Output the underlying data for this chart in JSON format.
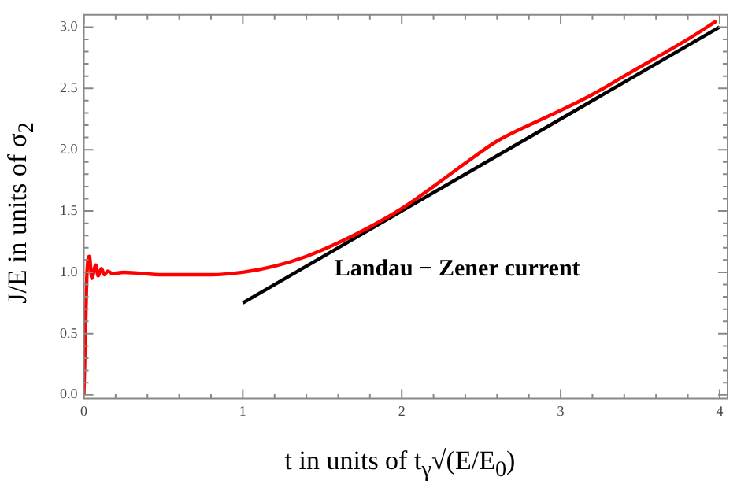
{
  "chart_data": {
    "type": "line",
    "xlabel": "t in units of t$_{γ}$√(E/E$_{0}$)",
    "ylabel": "J/E in units of σ$_{2}$",
    "annotations": [
      "Landau − Zener current"
    ],
    "xlim": [
      0,
      4.05
    ],
    "ylim": [
      -0.03,
      3.1
    ],
    "xticks": [
      0,
      {
        "value": 0.2,
        "label": null
      },
      {
        "value": 0.4,
        "label": null
      },
      {
        "value": 0.6,
        "label": null
      },
      {
        "value": 0.8,
        "label": null
      },
      1,
      {
        "value": 1.2,
        "label": null
      },
      {
        "value": 1.4,
        "label": null
      },
      {
        "value": 1.6,
        "label": null
      },
      {
        "value": 1.8,
        "label": null
      },
      2,
      {
        "value": 2.2,
        "label": null
      },
      {
        "value": 2.4,
        "label": null
      },
      {
        "value": 2.6,
        "label": null
      },
      {
        "value": 2.8,
        "label": null
      },
      3,
      {
        "value": 3.2,
        "label": null
      },
      {
        "value": 3.4,
        "label": null
      },
      {
        "value": 3.6,
        "label": null
      },
      {
        "value": 3.8,
        "label": null
      },
      4
    ],
    "yticks": [
      {
        "value": 0,
        "label": "0.0"
      },
      {
        "value": 0.1,
        "label": null
      },
      {
        "value": 0.2,
        "label": null
      },
      {
        "value": 0.3,
        "label": null
      },
      {
        "value": 0.4,
        "label": null
      },
      {
        "value": 0.5,
        "label": "0.5"
      },
      {
        "value": 0.6,
        "label": null
      },
      {
        "value": 0.7,
        "label": null
      },
      {
        "value": 0.8,
        "label": null
      },
      {
        "value": 0.9,
        "label": null
      },
      {
        "value": 1,
        "label": "1.0"
      },
      {
        "value": 1.1,
        "label": null
      },
      {
        "value": 1.2,
        "label": null
      },
      {
        "value": 1.3,
        "label": null
      },
      {
        "value": 1.4,
        "label": null
      },
      {
        "value": 1.5,
        "label": "1.5"
      },
      {
        "value": 1.6,
        "label": null
      },
      {
        "value": 1.7,
        "label": null
      },
      {
        "value": 1.8,
        "label": null
      },
      {
        "value": 1.9,
        "label": null
      },
      {
        "value": 2,
        "label": "2.0"
      },
      {
        "value": 2.1,
        "label": null
      },
      {
        "value": 2.2,
        "label": null
      },
      {
        "value": 2.3,
        "label": null
      },
      {
        "value": 2.4,
        "label": null
      },
      {
        "value": 2.5,
        "label": "2.5"
      },
      {
        "value": 2.6,
        "label": null
      },
      {
        "value": 2.7,
        "label": null
      },
      {
        "value": 2.8,
        "label": null
      },
      {
        "value": 2.9,
        "label": null
      },
      {
        "value": 3,
        "label": "3.0"
      }
    ],
    "grid": false,
    "legend": false,
    "marker": "none",
    "line_style": "solid",
    "series": [
      {
        "color": "#ff0000",
        "x": [
          0,
          0.01,
          0.02,
          0.035,
          0.05,
          0.075,
          0.09,
          0.11,
          0.13,
          0.15,
          0.18,
          0.25,
          0.5,
          0.8,
          1.0,
          1.2,
          1.4,
          1.6,
          1.8,
          2.0,
          2.2,
          2.4,
          2.6,
          2.8,
          3.0,
          3.2,
          3.4,
          3.6,
          3.8,
          3.98
        ],
        "values": [
          0,
          0.5,
          1.0,
          1.13,
          0.95,
          1.06,
          0.97,
          1.03,
          0.98,
          1.01,
          0.99,
          1.0,
          0.98,
          0.98,
          1.0,
          1.05,
          1.13,
          1.24,
          1.37,
          1.52,
          1.7,
          1.89,
          2.07,
          2.2,
          2.32,
          2.45,
          2.6,
          2.75,
          2.9,
          3.05
        ]
      },
      {
        "color": "#000000",
        "x": [
          1,
          4
        ],
        "values": [
          0.75,
          3.0
        ]
      }
    ]
  }
}
